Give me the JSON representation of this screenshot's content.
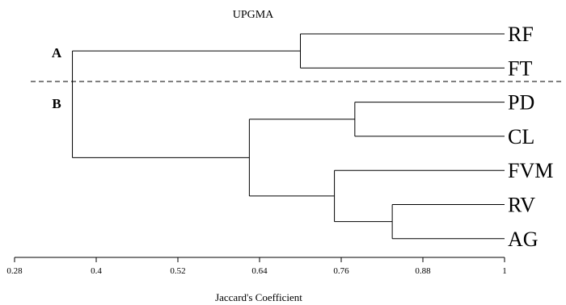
{
  "title": "UPGMA",
  "group_labels": [
    "A",
    "B"
  ],
  "x_axis": {
    "label": "Jaccard's Coefficient",
    "range": [
      0.28,
      1.0
    ],
    "ticks": [
      0.28,
      0.4,
      0.52,
      0.64,
      0.76,
      0.88,
      1.0
    ],
    "tick_labels": [
      "0.28",
      "0.4",
      "0.52",
      "0.64",
      "0.76",
      "0.88",
      "1"
    ]
  },
  "chart_data": {
    "type": "dendrogram",
    "method": "UPGMA",
    "leaves": [
      "RF",
      "FT",
      "PD",
      "CL",
      "FVM",
      "RV",
      "AG"
    ],
    "merges": [
      {
        "id": "m1",
        "children": [
          "RF",
          "FT"
        ],
        "similarity": 0.7
      },
      {
        "id": "m2",
        "children": [
          "PD",
          "CL"
        ],
        "similarity": 0.78
      },
      {
        "id": "m3",
        "children": [
          "RV",
          "AG"
        ],
        "similarity": 0.835
      },
      {
        "id": "m4",
        "children": [
          "FVM",
          "m3"
        ],
        "similarity": 0.75
      },
      {
        "id": "m5",
        "children": [
          "m2",
          "m4"
        ],
        "similarity": 0.625
      },
      {
        "id": "m6",
        "children": [
          "m1",
          "m5"
        ],
        "similarity": 0.365
      }
    ],
    "groups": [
      {
        "label": "A",
        "members": [
          "RF",
          "FT"
        ]
      },
      {
        "label": "B",
        "members": [
          "PD",
          "CL",
          "FVM",
          "RV",
          "AG"
        ]
      }
    ]
  }
}
